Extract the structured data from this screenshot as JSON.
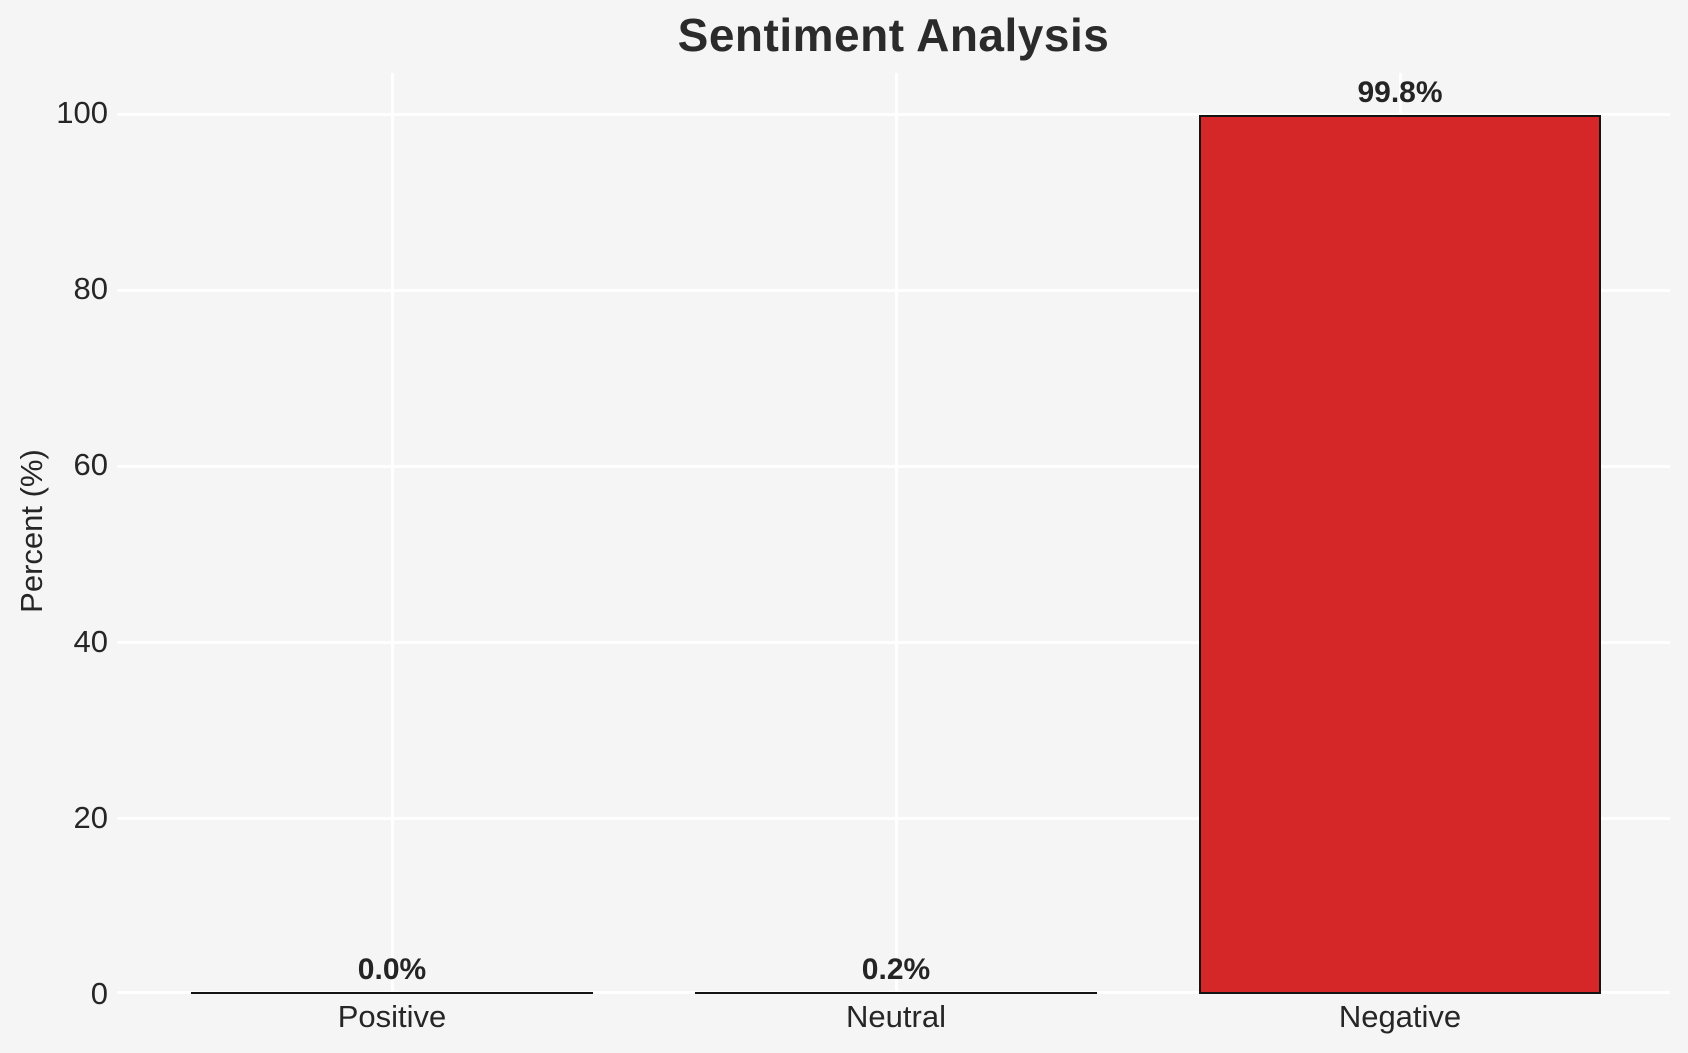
{
  "colors": {
    "background": "#f5f5f6",
    "grid": "#ffffff",
    "text": "#262626",
    "bar_edge": "#141414",
    "negative_bar": "#d62728"
  },
  "chart_data": {
    "type": "bar",
    "title": "Sentiment Analysis",
    "xlabel": "",
    "ylabel": "Percent (%)",
    "categories": [
      "Positive",
      "Neutral",
      "Negative"
    ],
    "values": [
      0.0,
      0.2,
      99.8
    ],
    "value_labels": [
      "0.0%",
      "0.2%",
      "99.8%"
    ],
    "bar_fills": [
      "none",
      "none",
      "#d62728"
    ],
    "yticks": [
      0,
      20,
      40,
      60,
      80,
      100
    ],
    "ytick_labels": [
      "0",
      "20",
      "40",
      "60",
      "80",
      "100"
    ],
    "ylim": [
      0,
      105
    ],
    "grid": true,
    "legend_position": "none"
  }
}
